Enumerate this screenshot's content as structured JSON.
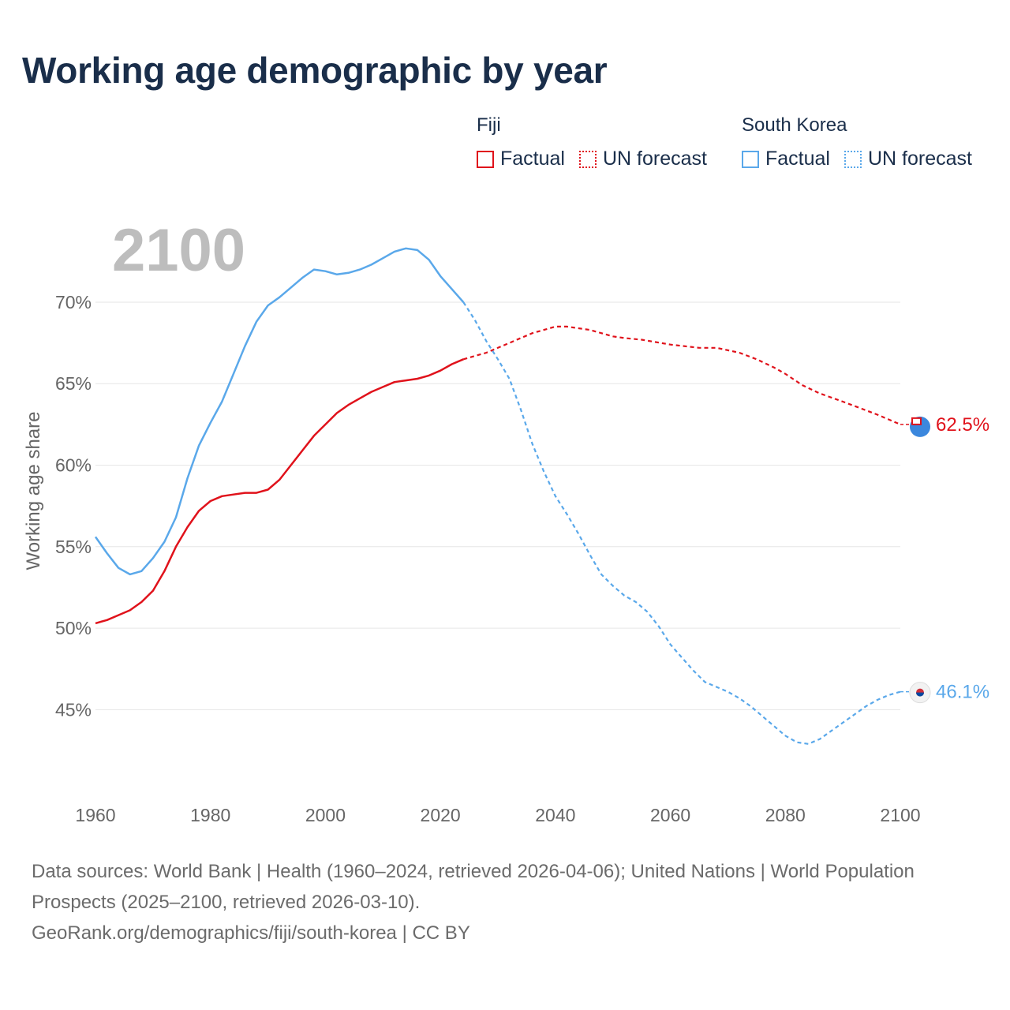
{
  "title": "Working age demographic by year",
  "legend": {
    "groups": [
      {
        "country": "Fiji",
        "factual_label": "Factual",
        "forecast_label": "UN forecast",
        "color": "#e0121b"
      },
      {
        "country": "South Korea",
        "factual_label": "Factual",
        "forecast_label": "UN forecast",
        "color": "#5aa8ea"
      }
    ]
  },
  "footer": {
    "sources": "Data sources: World Bank | Health (1960–2024, retrieved 2026-04-06); United Nations | World Population Prospects (2025–2100, retrieved 2026-03-10).",
    "credit": "GeoRank.org/demographics/fiji/south-korea | CC BY"
  },
  "chart_data": {
    "type": "line",
    "title": "Working age demographic by year",
    "year_label": "2100",
    "xlabel": "",
    "ylabel": "Working age share",
    "xlim": [
      1960,
      2100
    ],
    "ylim": [
      41,
      74.5
    ],
    "x_ticks": [
      1960,
      1980,
      2000,
      2020,
      2040,
      2060,
      2080,
      2100
    ],
    "y_ticks": [
      45,
      50,
      55,
      60,
      65,
      70
    ],
    "y_tick_labels": [
      "45%",
      "50%",
      "55%",
      "60%",
      "65%",
      "70%"
    ],
    "grid": true,
    "factual_end_year": 2024,
    "series": [
      {
        "name": "Fiji",
        "color": "#e0121b",
        "end_label": "62.5%",
        "points": [
          [
            1960,
            50.3
          ],
          [
            1962,
            50.5
          ],
          [
            1964,
            50.8
          ],
          [
            1966,
            51.1
          ],
          [
            1968,
            51.6
          ],
          [
            1970,
            52.3
          ],
          [
            1972,
            53.5
          ],
          [
            1974,
            55.0
          ],
          [
            1976,
            56.2
          ],
          [
            1978,
            57.2
          ],
          [
            1980,
            57.8
          ],
          [
            1982,
            58.1
          ],
          [
            1984,
            58.2
          ],
          [
            1986,
            58.3
          ],
          [
            1988,
            58.3
          ],
          [
            1990,
            58.5
          ],
          [
            1992,
            59.1
          ],
          [
            1994,
            60.0
          ],
          [
            1996,
            60.9
          ],
          [
            1998,
            61.8
          ],
          [
            2000,
            62.5
          ],
          [
            2002,
            63.2
          ],
          [
            2004,
            63.7
          ],
          [
            2006,
            64.1
          ],
          [
            2008,
            64.5
          ],
          [
            2010,
            64.8
          ],
          [
            2012,
            65.1
          ],
          [
            2014,
            65.2
          ],
          [
            2016,
            65.3
          ],
          [
            2018,
            65.5
          ],
          [
            2020,
            65.8
          ],
          [
            2022,
            66.2
          ],
          [
            2024,
            66.5
          ],
          [
            2026,
            66.7
          ],
          [
            2028,
            66.9
          ],
          [
            2030,
            67.2
          ],
          [
            2032,
            67.5
          ],
          [
            2034,
            67.8
          ],
          [
            2036,
            68.1
          ],
          [
            2038,
            68.3
          ],
          [
            2040,
            68.5
          ],
          [
            2042,
            68.5
          ],
          [
            2044,
            68.4
          ],
          [
            2046,
            68.3
          ],
          [
            2048,
            68.1
          ],
          [
            2050,
            67.9
          ],
          [
            2052,
            67.8
          ],
          [
            2055,
            67.7
          ],
          [
            2060,
            67.4
          ],
          [
            2065,
            67.2
          ],
          [
            2068,
            67.2
          ],
          [
            2072,
            66.9
          ],
          [
            2075,
            66.5
          ],
          [
            2078,
            66.0
          ],
          [
            2080,
            65.6
          ],
          [
            2083,
            64.9
          ],
          [
            2086,
            64.4
          ],
          [
            2090,
            63.9
          ],
          [
            2093,
            63.5
          ],
          [
            2096,
            63.1
          ],
          [
            2100,
            62.5
          ]
        ]
      },
      {
        "name": "South Korea",
        "color": "#5aa8ea",
        "end_label": "46.1%",
        "points": [
          [
            1960,
            55.6
          ],
          [
            1962,
            54.6
          ],
          [
            1964,
            53.7
          ],
          [
            1966,
            53.3
          ],
          [
            1968,
            53.5
          ],
          [
            1970,
            54.3
          ],
          [
            1972,
            55.3
          ],
          [
            1974,
            56.8
          ],
          [
            1976,
            59.2
          ],
          [
            1978,
            61.2
          ],
          [
            1980,
            62.6
          ],
          [
            1982,
            63.9
          ],
          [
            1984,
            65.6
          ],
          [
            1986,
            67.3
          ],
          [
            1988,
            68.8
          ],
          [
            1990,
            69.8
          ],
          [
            1992,
            70.3
          ],
          [
            1994,
            70.9
          ],
          [
            1996,
            71.5
          ],
          [
            1998,
            72.0
          ],
          [
            2000,
            71.9
          ],
          [
            2002,
            71.7
          ],
          [
            2004,
            71.8
          ],
          [
            2006,
            72.0
          ],
          [
            2008,
            72.3
          ],
          [
            2010,
            72.7
          ],
          [
            2012,
            73.1
          ],
          [
            2014,
            73.3
          ],
          [
            2016,
            73.2
          ],
          [
            2018,
            72.6
          ],
          [
            2020,
            71.6
          ],
          [
            2022,
            70.8
          ],
          [
            2024,
            70.0
          ],
          [
            2026,
            68.9
          ],
          [
            2028,
            67.6
          ],
          [
            2030,
            66.5
          ],
          [
            2032,
            65.3
          ],
          [
            2034,
            63.4
          ],
          [
            2036,
            61.3
          ],
          [
            2038,
            59.6
          ],
          [
            2040,
            58.1
          ],
          [
            2042,
            57.0
          ],
          [
            2044,
            55.8
          ],
          [
            2046,
            54.5
          ],
          [
            2048,
            53.3
          ],
          [
            2050,
            52.6
          ],
          [
            2052,
            52.0
          ],
          [
            2054,
            51.6
          ],
          [
            2056,
            51.0
          ],
          [
            2058,
            50.1
          ],
          [
            2060,
            49.0
          ],
          [
            2062,
            48.2
          ],
          [
            2064,
            47.4
          ],
          [
            2066,
            46.7
          ],
          [
            2068,
            46.4
          ],
          [
            2070,
            46.1
          ],
          [
            2072,
            45.7
          ],
          [
            2074,
            45.2
          ],
          [
            2076,
            44.6
          ],
          [
            2078,
            44.0
          ],
          [
            2080,
            43.4
          ],
          [
            2082,
            43.0
          ],
          [
            2084,
            42.9
          ],
          [
            2086,
            43.2
          ],
          [
            2088,
            43.7
          ],
          [
            2090,
            44.2
          ],
          [
            2092,
            44.7
          ],
          [
            2094,
            45.2
          ],
          [
            2096,
            45.6
          ],
          [
            2098,
            45.9
          ],
          [
            2100,
            46.1
          ]
        ]
      }
    ]
  }
}
